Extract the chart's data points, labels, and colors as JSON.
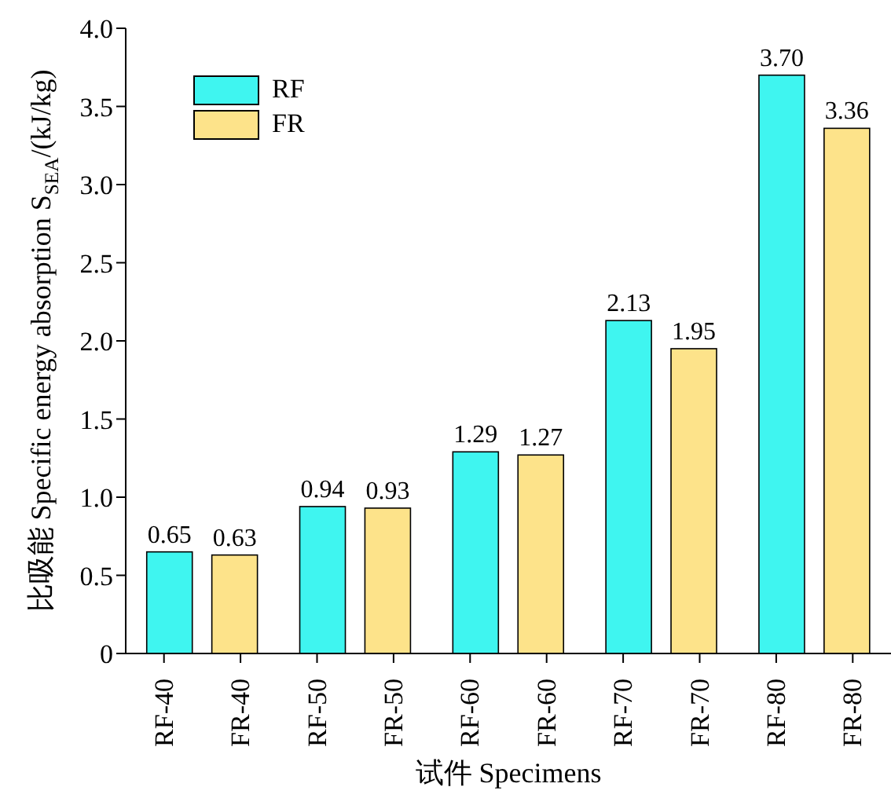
{
  "chart_data": {
    "type": "bar",
    "xlabel": "试件 Specimens",
    "ylabel": "比吸能 Specific energy absorption S$_{SEA}$/(kJ/kg)",
    "categories": [
      "RF-40",
      "FR-40",
      "RF-50",
      "FR-50",
      "RF-60",
      "FR-60",
      "RF-70",
      "FR-70",
      "RF-80",
      "FR-80"
    ],
    "series": [
      {
        "name": "RF",
        "color": "#3ff5f0",
        "values": [
          0.65,
          null,
          0.94,
          null,
          1.29,
          null,
          2.13,
          null,
          3.7,
          null
        ],
        "value_labels": [
          "0.65",
          null,
          "0.94",
          null,
          "1.29",
          null,
          "2.13",
          null,
          "3.70",
          null
        ]
      },
      {
        "name": "FR",
        "color": "#fde38a",
        "values": [
          null,
          0.63,
          null,
          0.93,
          null,
          1.27,
          null,
          1.95,
          null,
          3.36
        ],
        "value_labels": [
          null,
          "0.63",
          null,
          "0.93",
          null,
          "1.27",
          null,
          "1.95",
          null,
          "3.36"
        ]
      }
    ],
    "ylim": [
      0,
      4
    ],
    "yticks": [
      0,
      0.5,
      {
        "value": 1,
        "label": "1.0"
      },
      1.5,
      {
        "value": 2,
        "label": "2.0"
      },
      2.5,
      {
        "value": 3,
        "label": "3.0"
      },
      3.5,
      {
        "value": 4,
        "label": "4.0"
      }
    ],
    "grid": false,
    "legend": "top left"
  }
}
